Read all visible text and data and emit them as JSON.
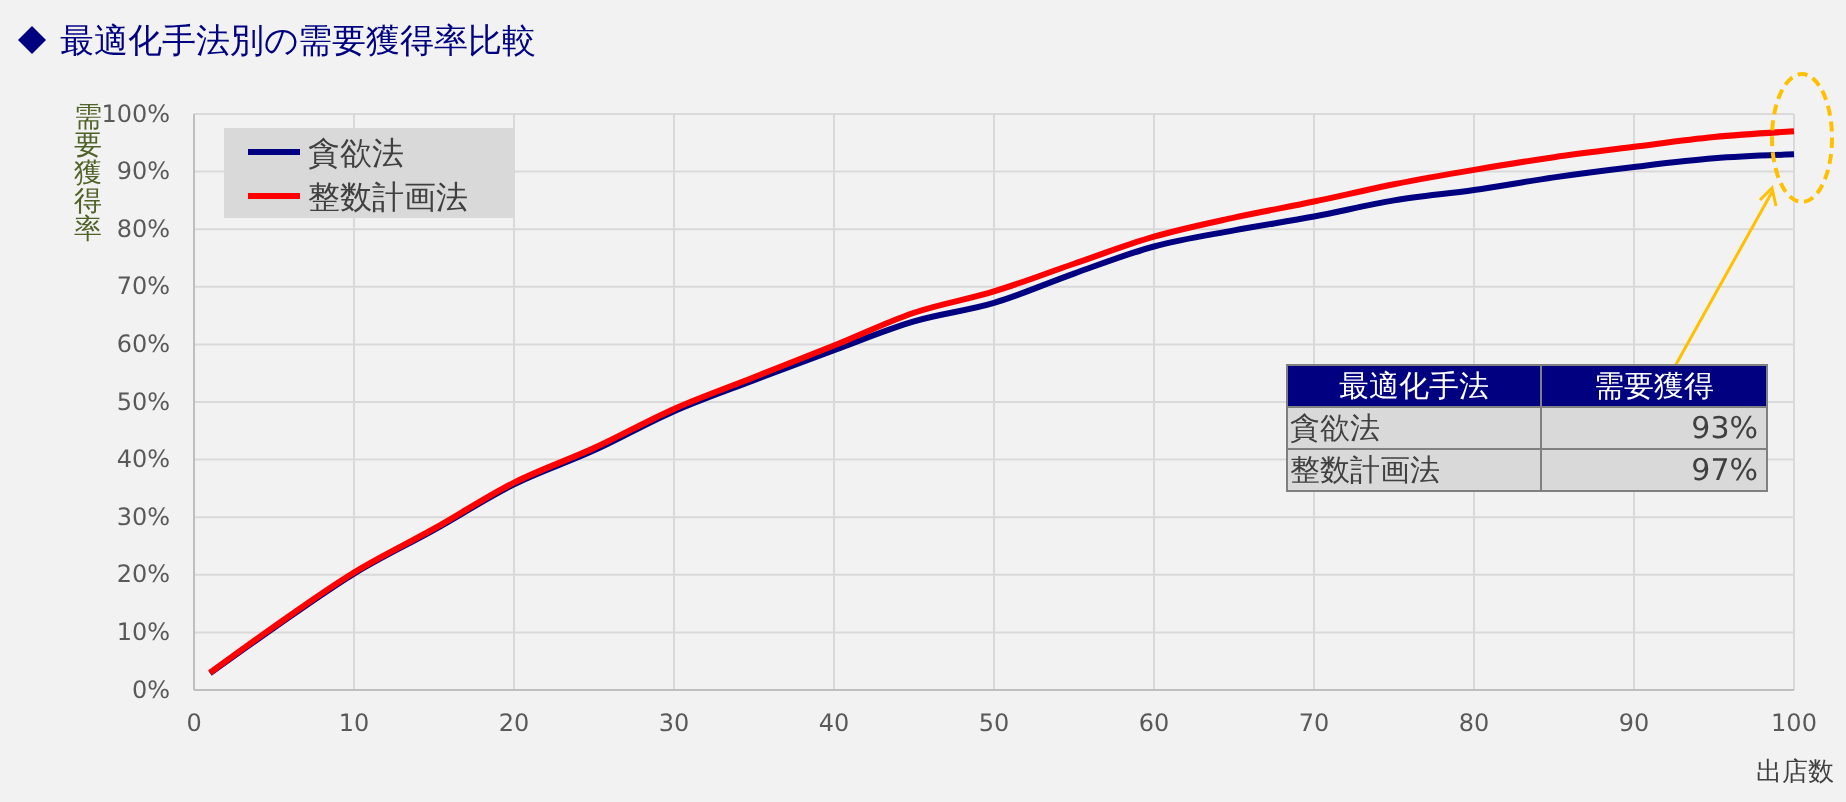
{
  "chart_data": {
    "type": "line",
    "title": "最適化手法別の需要獲得率比較",
    "xlabel": "出店数",
    "ylabel": "需要獲得率",
    "x": [
      1,
      5,
      10,
      15,
      20,
      25,
      30,
      35,
      40,
      45,
      50,
      55,
      60,
      65,
      70,
      75,
      80,
      85,
      90,
      95,
      100
    ],
    "series": [
      {
        "name": "貪欲法",
        "color": "#000080",
        "values": [
          2.9,
          10.8,
          20.2,
          27.8,
          35.7,
          41.6,
          48.4,
          53.8,
          59.0,
          64.0,
          67.2,
          72.3,
          77.0,
          79.8,
          82.2,
          85.0,
          86.8,
          89.0,
          90.8,
          92.3,
          93
        ]
      },
      {
        "name": "整数計画法",
        "color": "#ff0000",
        "values": [
          3.0,
          11.0,
          20.4,
          28.0,
          36.0,
          42.0,
          48.8,
          54.3,
          59.8,
          65.5,
          69.2,
          74.0,
          78.7,
          82.0,
          84.8,
          87.8,
          90.3,
          92.5,
          94.3,
          96.0,
          97
        ]
      }
    ],
    "xlim": [
      0,
      100
    ],
    "xticks": [
      0,
      10,
      20,
      30,
      40,
      50,
      60,
      70,
      80,
      90,
      100
    ],
    "ylim": [
      0,
      100
    ],
    "yticks": [
      {
        "value": 0,
        "label": "0%"
      },
      {
        "value": 10,
        "label": "10%"
      },
      {
        "value": 20,
        "label": "20%"
      },
      {
        "value": 30,
        "label": "30%"
      },
      {
        "value": 40,
        "label": "40%"
      },
      {
        "value": 50,
        "label": "50%"
      },
      {
        "value": 60,
        "label": "60%"
      },
      {
        "value": 70,
        "label": "70%"
      },
      {
        "value": 80,
        "label": "80%"
      },
      {
        "value": 90,
        "label": "90%"
      },
      {
        "value": 100,
        "label": "100%"
      }
    ],
    "grid": true,
    "legend": "top left",
    "marker": "none",
    "line_style": "solid",
    "annotations": [
      "最適化手法",
      "需要獲得",
      "93%",
      "97%"
    ]
  }
}
